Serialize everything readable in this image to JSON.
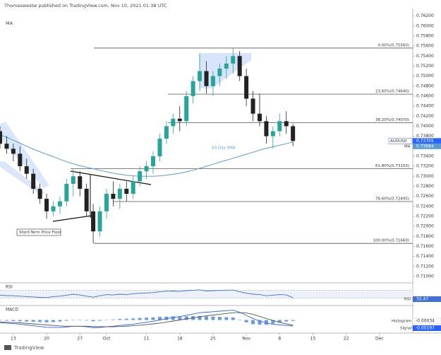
{
  "header": {
    "byline": "Thomaswestw published on TradingView.com, Nov 10, 2021 01:38 UTC",
    "indicator": "MA"
  },
  "chart_data": {
    "type": "candlestick",
    "symbol": "AUDUSD",
    "up_color": "#26a69a",
    "down_color": "#222222",
    "xlim": [
      0,
      62
    ],
    "xticks": [
      {
        "value": 2,
        "label": "13"
      },
      {
        "value": 7,
        "label": "20"
      },
      {
        "value": 12,
        "label": "27"
      },
      {
        "value": 16,
        "label": "Oct"
      },
      {
        "value": 22,
        "label": "11"
      },
      {
        "value": 27,
        "label": "18"
      },
      {
        "value": 32,
        "label": "25"
      },
      {
        "value": 37,
        "label": "Nov"
      },
      {
        "value": 42,
        "label": "8"
      },
      {
        "value": 47,
        "label": "15"
      },
      {
        "value": 52,
        "label": "22"
      },
      {
        "value": 57,
        "label": "Dec"
      }
    ],
    "ylim": [
      0.709,
      0.7635
    ],
    "yticks": [
      {
        "value": 0.71,
        "label": "0.71000"
      },
      {
        "value": 0.712,
        "label": "0.71200"
      },
      {
        "value": 0.714,
        "label": "0.71400"
      },
      {
        "value": 0.716,
        "label": "0.71600"
      },
      {
        "value": 0.718,
        "label": "0.71800"
      },
      {
        "value": 0.72,
        "label": "0.72000"
      },
      {
        "value": 0.722,
        "label": "0.72200"
      },
      {
        "value": 0.724,
        "label": "0.72400"
      },
      {
        "value": 0.726,
        "label": "0.72600"
      },
      {
        "value": 0.728,
        "label": "0.72800"
      },
      {
        "value": 0.73,
        "label": "0.73000"
      },
      {
        "value": 0.732,
        "label": "0.73200"
      },
      {
        "value": 0.734,
        "label": "0.73400"
      },
      {
        "value": 0.736,
        "label": "0.73600"
      },
      {
        "value": 0.738,
        "label": "0.73800"
      },
      {
        "value": 0.74,
        "label": "0.74000"
      },
      {
        "value": 0.742,
        "label": "0.74200"
      },
      {
        "value": 0.744,
        "label": "0.74400"
      },
      {
        "value": 0.746,
        "label": "0.74600"
      },
      {
        "value": 0.748,
        "label": "0.74800"
      },
      {
        "value": 0.75,
        "label": "0.75000"
      },
      {
        "value": 0.752,
        "label": "0.75200"
      },
      {
        "value": 0.754,
        "label": "0.75400"
      },
      {
        "value": 0.756,
        "label": "0.75600"
      },
      {
        "value": 0.758,
        "label": "0.75800"
      },
      {
        "value": 0.76,
        "label": "0.76000"
      },
      {
        "value": 0.762,
        "label": "0.76200"
      }
    ],
    "open": [
      0.739,
      0.7365,
      0.7355,
      0.7345,
      0.732,
      0.7305,
      0.7275,
      0.7255,
      0.723,
      0.724,
      0.725,
      0.7285,
      0.73,
      0.7275,
      0.723,
      0.719,
      0.723,
      0.7265,
      0.7255,
      0.7275,
      0.7265,
      0.729,
      0.731,
      0.732,
      0.734,
      0.7375,
      0.74,
      0.7415,
      0.741,
      0.746,
      0.749,
      0.751,
      0.748,
      0.75,
      0.7515,
      0.7525,
      0.754,
      0.75,
      0.7455,
      0.7425,
      0.741,
      0.738,
      0.739,
      0.741,
      0.74
    ],
    "high": [
      0.74,
      0.738,
      0.7365,
      0.736,
      0.7335,
      0.7315,
      0.7285,
      0.7265,
      0.725,
      0.726,
      0.7295,
      0.7315,
      0.731,
      0.7285,
      0.7245,
      0.724,
      0.7275,
      0.729,
      0.7285,
      0.729,
      0.73,
      0.732,
      0.733,
      0.735,
      0.7385,
      0.741,
      0.7425,
      0.744,
      0.747,
      0.75,
      0.7545,
      0.753,
      0.751,
      0.7525,
      0.754,
      0.7556,
      0.755,
      0.7515,
      0.747,
      0.7465,
      0.742,
      0.74,
      0.7425,
      0.743,
      0.7405
    ],
    "low": [
      0.7355,
      0.7345,
      0.733,
      0.731,
      0.7295,
      0.7265,
      0.7245,
      0.7215,
      0.722,
      0.7225,
      0.724,
      0.726,
      0.726,
      0.722,
      0.7166,
      0.718,
      0.7215,
      0.724,
      0.7235,
      0.725,
      0.7255,
      0.728,
      0.7295,
      0.7305,
      0.733,
      0.7365,
      0.7385,
      0.739,
      0.74,
      0.7445,
      0.747,
      0.7465,
      0.746,
      0.748,
      0.7495,
      0.7505,
      0.749,
      0.744,
      0.741,
      0.74,
      0.7365,
      0.7355,
      0.738,
      0.7385,
      0.736
    ],
    "close": [
      0.7365,
      0.7355,
      0.7345,
      0.732,
      0.7305,
      0.7275,
      0.7255,
      0.723,
      0.724,
      0.725,
      0.7285,
      0.73,
      0.7275,
      0.723,
      0.719,
      0.723,
      0.7265,
      0.7255,
      0.7275,
      0.7265,
      0.729,
      0.731,
      0.732,
      0.734,
      0.7375,
      0.74,
      0.7415,
      0.741,
      0.746,
      0.749,
      0.751,
      0.748,
      0.75,
      0.7515,
      0.7525,
      0.754,
      0.75,
      0.7455,
      0.7425,
      0.741,
      0.738,
      0.739,
      0.741,
      0.74,
      0.73705
    ],
    "sma": {
      "name": "MA",
      "label": "50-Day SMA",
      "color": "#5b9bd5",
      "values": [
        0.7383,
        0.7378,
        0.7372,
        0.7366,
        0.736,
        0.7354,
        0.7349,
        0.7344,
        0.7339,
        0.7334,
        0.7329,
        0.7325,
        0.7321,
        0.7318,
        0.7315,
        0.7312,
        0.7309,
        0.7306,
        0.7304,
        0.7302,
        0.7301,
        0.73,
        0.73,
        0.73,
        0.7301,
        0.7302,
        0.7304,
        0.7306,
        0.7309,
        0.7312,
        0.7316,
        0.732,
        0.7324,
        0.7328,
        0.7332,
        0.7336,
        0.734,
        0.7344,
        0.7348,
        0.7352,
        0.7356,
        0.7359,
        0.7362,
        0.7365,
        0.73684
      ]
    },
    "fib_levels": [
      {
        "label": "0.00%(0.75560)",
        "value": 0.7556
      },
      {
        "label": "23.60%(0.74640)",
        "value": 0.7464
      },
      {
        "label": "38.20%(0.74070)",
        "value": 0.7407
      },
      {
        "label": "61.80%(0.73150)",
        "value": 0.7315
      },
      {
        "label": "78.60%(0.72495)",
        "value": 0.72495
      },
      {
        "label": "100.00%(0.71660)",
        "value": 0.7166
      }
    ],
    "annotation": "Short-Term Price Floor",
    "rsi": {
      "name": "RSI",
      "color": "#3f6fd8",
      "ylim": [
        0,
        100
      ],
      "levels": [
        70,
        30
      ],
      "values": [
        45,
        43,
        42,
        40,
        38,
        36,
        34,
        33,
        38,
        40,
        45,
        50,
        46,
        40,
        35,
        42,
        48,
        46,
        50,
        48,
        52,
        55,
        56,
        58,
        62,
        65,
        66,
        64,
        68,
        70,
        72,
        66,
        68,
        69,
        70,
        71,
        62,
        55,
        50,
        48,
        42,
        45,
        48,
        46,
        32.47
      ]
    },
    "macd": {
      "name": "MACD",
      "ylim": [
        -0.0045,
        0.0045
      ],
      "line": {
        "color": "#2962ff",
        "values": [
          -0.001,
          -0.0012,
          -0.0014,
          -0.0016,
          -0.0019,
          -0.0022,
          -0.0025,
          -0.0028,
          -0.0029,
          -0.0029,
          -0.0027,
          -0.0024,
          -0.0024,
          -0.0026,
          -0.003,
          -0.0029,
          -0.0026,
          -0.0024,
          -0.0021,
          -0.0019,
          -0.0016,
          -0.0012,
          -0.0009,
          -0.0005,
          0.0,
          0.0005,
          0.001,
          0.0013,
          0.0018,
          0.0023,
          0.0028,
          0.003,
          0.0032,
          0.0034,
          0.0036,
          0.0038,
          0.003,
          0.0018,
          0.0006,
          -0.0004,
          -0.0012,
          -0.0016,
          -0.0019,
          -0.0021,
          -0.00231
        ]
      },
      "signal": {
        "name": "Signal",
        "color": "#555555",
        "values": [
          -0.0008,
          -0.0009,
          -0.001,
          -0.0011,
          -0.0013,
          -0.0015,
          -0.0017,
          -0.0019,
          -0.0021,
          -0.0023,
          -0.0024,
          -0.0024,
          -0.0024,
          -0.0024,
          -0.0025,
          -0.0026,
          -0.0026,
          -0.0026,
          -0.0025,
          -0.0024,
          -0.0022,
          -0.002,
          -0.0018,
          -0.0015,
          -0.0012,
          -0.0008,
          -0.0004,
          0.0,
          0.0004,
          0.0008,
          0.0012,
          0.0016,
          0.0019,
          0.0022,
          0.0025,
          0.0028,
          0.0029,
          0.0027,
          0.0022,
          0.0014,
          0.0006,
          -0.0002,
          -0.0009,
          -0.0015,
          -0.00197
        ]
      },
      "histogram": {
        "name": "Histogram",
        "color": "#6a9be0",
        "values": [
          -0.0002,
          -0.0003,
          -0.0004,
          -0.0005,
          -0.0006,
          -0.0007,
          -0.0008,
          -0.0009,
          -0.0008,
          -0.0006,
          -0.0003,
          0,
          0,
          -0.0002,
          -0.0005,
          -0.0003,
          0,
          0.0002,
          0.0004,
          0.0005,
          0.0006,
          0.0008,
          0.0009,
          0.001,
          0.0012,
          0.0013,
          0.0014,
          0.0013,
          0.0014,
          0.0015,
          0.0016,
          0.0014,
          0.0013,
          0.0012,
          0.0011,
          0.001,
          0.0001,
          -0.0009,
          -0.0016,
          -0.0018,
          -0.0018,
          -0.0014,
          -0.001,
          -0.0006,
          -0.00034
        ]
      }
    }
  },
  "footer": {
    "logo": "TradingView"
  }
}
